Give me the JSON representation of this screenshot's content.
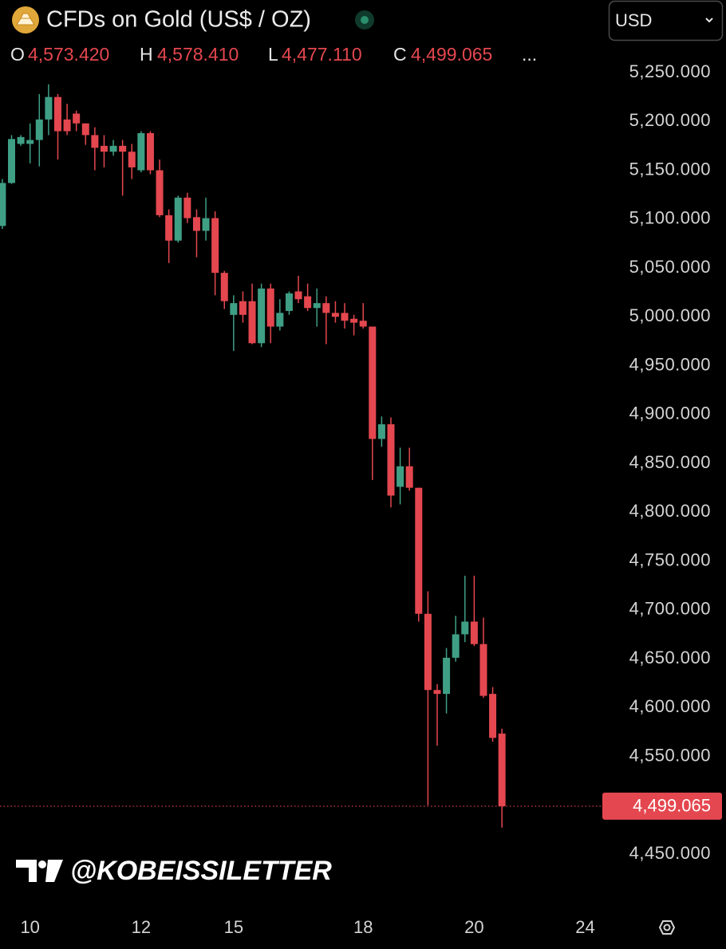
{
  "chart_data": {
    "type": "candlestick",
    "title": "CFDs on Gold (US$ / OZ)",
    "currency": "USD",
    "ohlc_letters": [
      "O",
      "H",
      "L",
      "C"
    ],
    "ohlc_value_labels": [
      "4,573.420",
      "4,578.410",
      "4,477.110",
      "4,499.065"
    ],
    "more": "...",
    "last_price_label": "4,499.065",
    "watermark": "@KOBEISSILETTER",
    "up_color": "#3f9f85",
    "down_color": "#e4474f",
    "grid": false,
    "x": [
      0,
      1,
      2,
      3,
      4,
      5,
      6,
      7,
      8,
      9,
      10,
      11,
      12,
      13,
      14,
      15,
      16,
      17,
      18,
      19,
      20,
      21,
      22,
      23,
      24,
      25,
      26,
      27,
      28,
      29,
      30,
      31,
      32,
      33,
      34,
      35,
      36,
      37,
      38,
      39,
      40,
      41,
      42,
      43,
      44,
      45,
      46,
      47,
      48,
      49,
      50,
      51,
      52,
      53,
      54
    ],
    "open": [
      5093,
      5137,
      5177,
      5177,
      5181,
      5202,
      5225,
      5202,
      5208,
      5198,
      5186,
      5175,
      5169,
      5175,
      5169,
      5150,
      5188,
      5150,
      5104,
      5078,
      5122,
      5102,
      5088,
      5101,
      5045,
      5002,
      5016,
      5016,
      4973,
      5029,
      4990,
      5006,
      5026,
      5021,
      5009,
      5014,
      5004,
      5004,
      4998,
      4996,
      4990,
      4875,
      4890,
      4826,
      4847,
      4825,
      4696,
      4618,
      4614,
      4651,
      4675,
      4688,
      4665,
      4614,
      4573.42
    ],
    "high": [
      5141,
      5186,
      5186,
      5198,
      5228,
      5238,
      5228,
      5218,
      5211,
      5198,
      5194,
      5186,
      5181,
      5181,
      5177,
      5190,
      5190,
      5161,
      5110,
      5124,
      5127,
      5110,
      5122,
      5108,
      5047,
      5022,
      5026,
      5034,
      5034,
      5034,
      5018,
      5026,
      5042,
      5034,
      5029,
      5021,
      5016,
      5014,
      5002,
      5014,
      4990,
      4898,
      4897,
      4866,
      4866,
      4825,
      4719,
      4624,
      4661,
      4694,
      4735,
      4735,
      4692,
      4621,
      4578.41
    ],
    "low": [
      5090,
      5136,
      5175,
      5157,
      5154,
      5186,
      5161,
      5186,
      5190,
      5176,
      5150,
      5153,
      5165,
      5124,
      5141,
      5148,
      5146,
      5102,
      5055,
      5076,
      5096,
      5061,
      5078,
      5022,
      5008,
      4965,
      4994,
      4972,
      4969,
      4973,
      4986,
      5002,
      5014,
      5006,
      4990,
      4972,
      4994,
      4988,
      4981,
      4988,
      4833,
      4867,
      4805,
      4808,
      4822,
      4688,
      4500,
      4561,
      4594,
      4647,
      4667,
      4663,
      4610,
      4565,
      4477.11
    ],
    "close": [
      5137,
      5182,
      5184,
      5181,
      5202,
      5225,
      5190,
      5190,
      5198,
      5186,
      5173,
      5169,
      5175,
      5169,
      5153,
      5188,
      5150,
      5104,
      5078,
      5122,
      5101,
      5088,
      5101,
      5045,
      5016,
      5014,
      5002,
      4973,
      5029,
      4990,
      5004,
      5024,
      5018,
      5009,
      5014,
      5004,
      5000,
      4996,
      4994,
      4990,
      4875,
      4890,
      4817,
      4847,
      4825,
      4696,
      4618,
      4614,
      4651,
      4675,
      4688,
      4665,
      4612,
      4569,
      4499.065
    ],
    "xlim": [
      -0.25,
      64.85
    ],
    "xticks": [
      {
        "value": 3,
        "label": "10"
      },
      {
        "value": 15,
        "label": "12"
      },
      {
        "value": 25,
        "label": "15"
      },
      {
        "value": 39,
        "label": "18"
      },
      {
        "value": 51,
        "label": "20"
      },
      {
        "value": 63,
        "label": "24"
      }
    ],
    "ylim": [
      4393.7,
      5324.3
    ],
    "yticks": [
      {
        "value": 5250,
        "label": "5,250.000"
      },
      {
        "value": 5200,
        "label": "5,200.000"
      },
      {
        "value": 5150,
        "label": "5,150.000"
      },
      {
        "value": 5100,
        "label": "5,100.000"
      },
      {
        "value": 5050,
        "label": "5,050.000"
      },
      {
        "value": 5000,
        "label": "5,000.000"
      },
      {
        "value": 4950,
        "label": "4,950.000"
      },
      {
        "value": 4900,
        "label": "4,900.000"
      },
      {
        "value": 4850,
        "label": "4,850.000"
      },
      {
        "value": 4800,
        "label": "4,800.000"
      },
      {
        "value": 4750,
        "label": "4,750.000"
      },
      {
        "value": 4700,
        "label": "4,700.000"
      },
      {
        "value": 4650,
        "label": "4,650.000"
      },
      {
        "value": 4600,
        "label": "4,600.000"
      },
      {
        "value": 4550,
        "label": "4,550.000"
      },
      {
        "value": 4500,
        "label": "4,500.000"
      },
      {
        "value": 4450,
        "label": "4,450.000"
      }
    ]
  }
}
